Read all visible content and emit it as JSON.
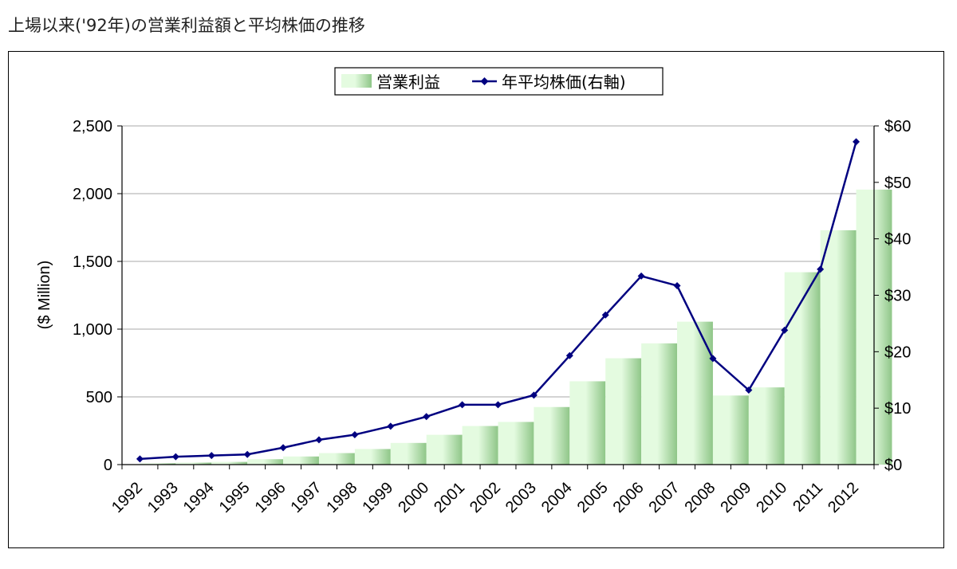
{
  "page": {
    "title": "上場以来('92年)の営業利益額と平均株価の推移"
  },
  "chart_data": {
    "type": "bar",
    "title": "",
    "categories": [
      "1992",
      "1993",
      "1994",
      "1995",
      "1996",
      "1997",
      "1998",
      "1999",
      "2000",
      "2001",
      "2002",
      "2003",
      "2004",
      "2005",
      "2006",
      "2007",
      "2008",
      "2009",
      "2010",
      "2011",
      "2012"
    ],
    "series": [
      {
        "name": "営業利益",
        "type": "bar",
        "axis": "left",
        "values": [
          10,
          15,
          20,
          40,
          60,
          85,
          115,
          160,
          220,
          285,
          315,
          425,
          615,
          785,
          895,
          1055,
          510,
          570,
          1420,
          1730,
          2030
        ]
      },
      {
        "name": "年平均株価(右軸)",
        "type": "line",
        "axis": "right",
        "values": [
          1.0,
          1.4,
          1.6,
          1.8,
          3.0,
          4.4,
          5.3,
          6.8,
          8.5,
          10.6,
          10.6,
          12.3,
          19.3,
          26.5,
          33.4,
          31.7,
          18.8,
          13.2,
          23.8,
          34.6,
          57.2
        ]
      }
    ],
    "ylabel": "($ Million)",
    "ylim": [
      0,
      2500
    ],
    "yticks": [
      "0",
      "500",
      "1,000",
      "1,500",
      "2,000",
      "2,500"
    ],
    "y2lim": [
      0,
      60
    ],
    "y2ticks": [
      "$0",
      "$10",
      "$20",
      "$30",
      "$40",
      "$50",
      "$60"
    ],
    "grid": true,
    "legend_position": "top-center",
    "colors": {
      "bar_light": "#e4fbe0",
      "bar_dark": "#8fc688",
      "line": "#000080"
    }
  }
}
